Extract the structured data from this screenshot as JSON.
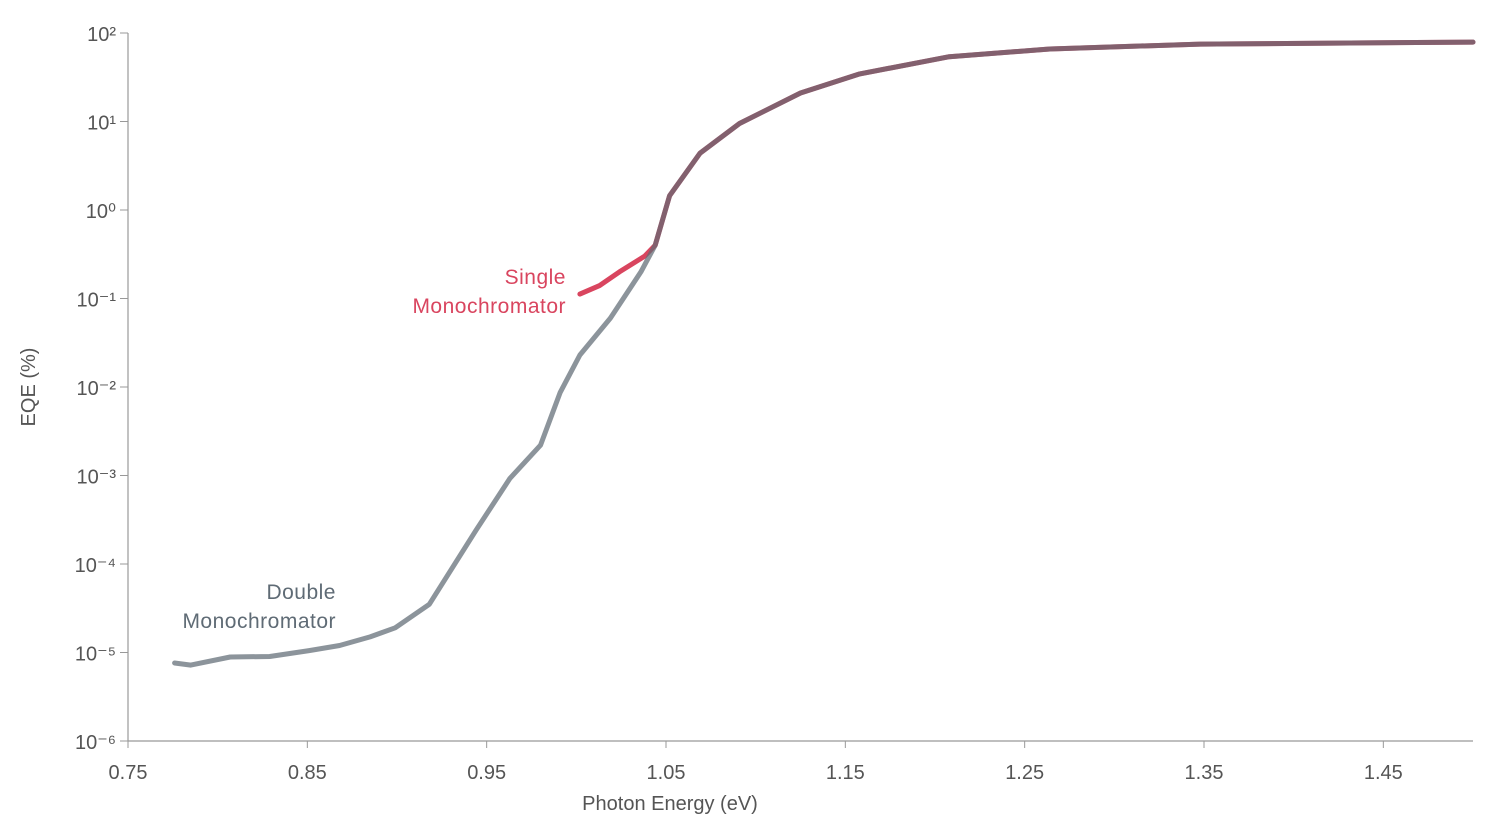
{
  "chart_data": {
    "type": "line",
    "xlabel": "Photon Energy (eV)",
    "ylabel": "EQE (%)",
    "yscale": "log",
    "xlim": [
      0.75,
      1.5
    ],
    "ylim": [
      1e-06,
      100
    ],
    "xticks": [
      0.75,
      0.85,
      0.95,
      1.05,
      1.15,
      1.25,
      1.35,
      1.45
    ],
    "yticks": [
      {
        "value": 100,
        "label": "10²"
      },
      {
        "value": 10,
        "label": "10¹"
      },
      {
        "value": 1,
        "label": "10⁰"
      },
      {
        "value": 0.1,
        "label": "10⁻¹"
      },
      {
        "value": 0.01,
        "label": "10⁻²"
      },
      {
        "value": 0.001,
        "label": "10⁻³"
      },
      {
        "value": 0.0001,
        "label": "10⁻⁴"
      },
      {
        "value": 1e-05,
        "label": "10⁻⁵"
      },
      {
        "value": 1e-06,
        "label": "10⁻⁶"
      }
    ],
    "series": [
      {
        "name": "Single Monochromator",
        "color": "#d9455f",
        "x": [
          1.002,
          1.013,
          1.024,
          1.038,
          1.044,
          1.052,
          1.069,
          1.091,
          1.125,
          1.158,
          1.208,
          1.264,
          1.348,
          1.5
        ],
        "values": [
          0.112,
          0.14,
          0.2,
          0.3,
          0.4,
          1.45,
          4.4,
          9.5,
          21,
          34.5,
          54,
          66,
          75,
          79
        ]
      },
      {
        "name": "Double Monochromator",
        "color": "#5f6b75",
        "x": [
          0.776,
          0.785,
          0.807,
          0.829,
          0.851,
          0.868,
          0.885,
          0.899,
          0.918,
          0.944,
          0.963,
          0.98,
          0.991,
          1.002,
          1.019,
          1.036,
          1.044,
          1.052,
          1.069,
          1.091,
          1.125,
          1.158,
          1.208,
          1.264,
          1.348,
          1.5
        ],
        "values": [
          7.6e-06,
          7.2e-06,
          8.9e-06,
          9e-06,
          1.05e-05,
          1.2e-05,
          1.5e-05,
          1.9e-05,
          3.5e-05,
          0.00024,
          0.00093,
          0.0022,
          0.0087,
          0.023,
          0.06,
          0.2,
          0.4,
          1.45,
          4.4,
          9.5,
          21,
          34.5,
          54,
          66,
          75,
          79
        ]
      }
    ]
  }
}
